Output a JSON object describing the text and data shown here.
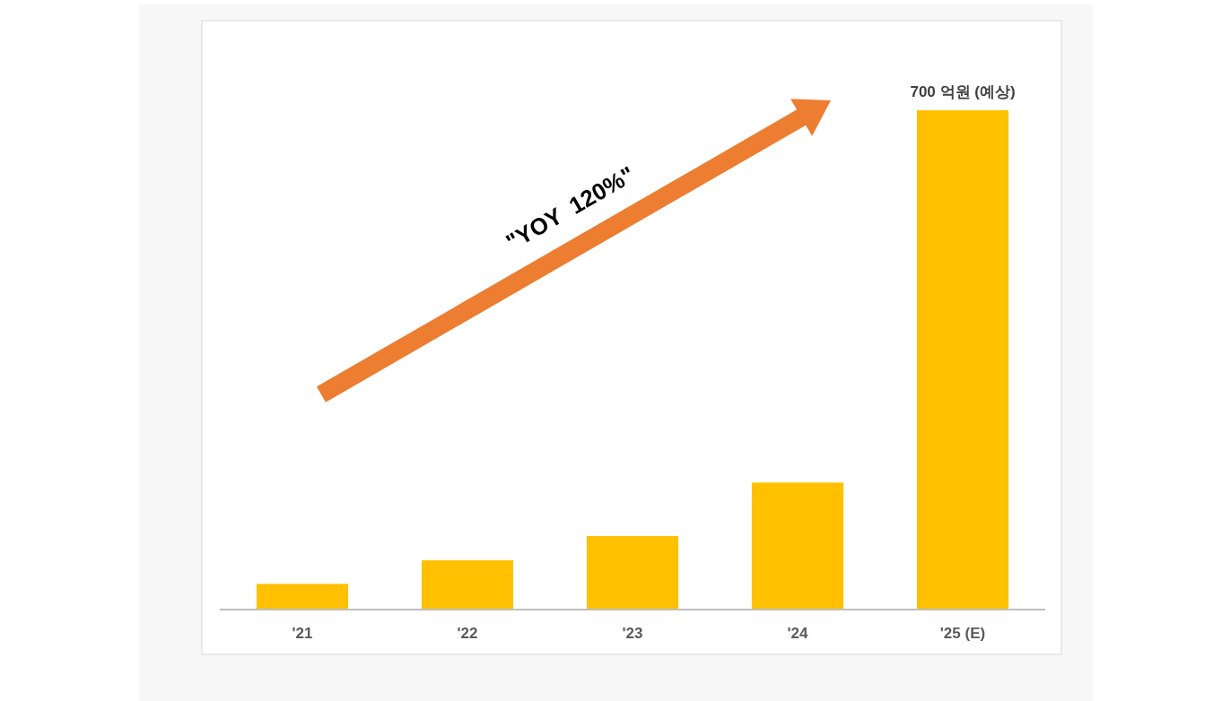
{
  "chart_data": {
    "type": "bar",
    "categories": [
      "'21",
      "'22",
      "'23",
      "'24",
      "'25 (E)"
    ],
    "values": [
      36,
      69,
      103,
      178,
      700
    ],
    "value_labels": [
      null,
      null,
      null,
      null,
      "700 억원 (예상)"
    ],
    "color": "#ffc000",
    "annotations": [
      "\"YOY  120%\""
    ]
  }
}
